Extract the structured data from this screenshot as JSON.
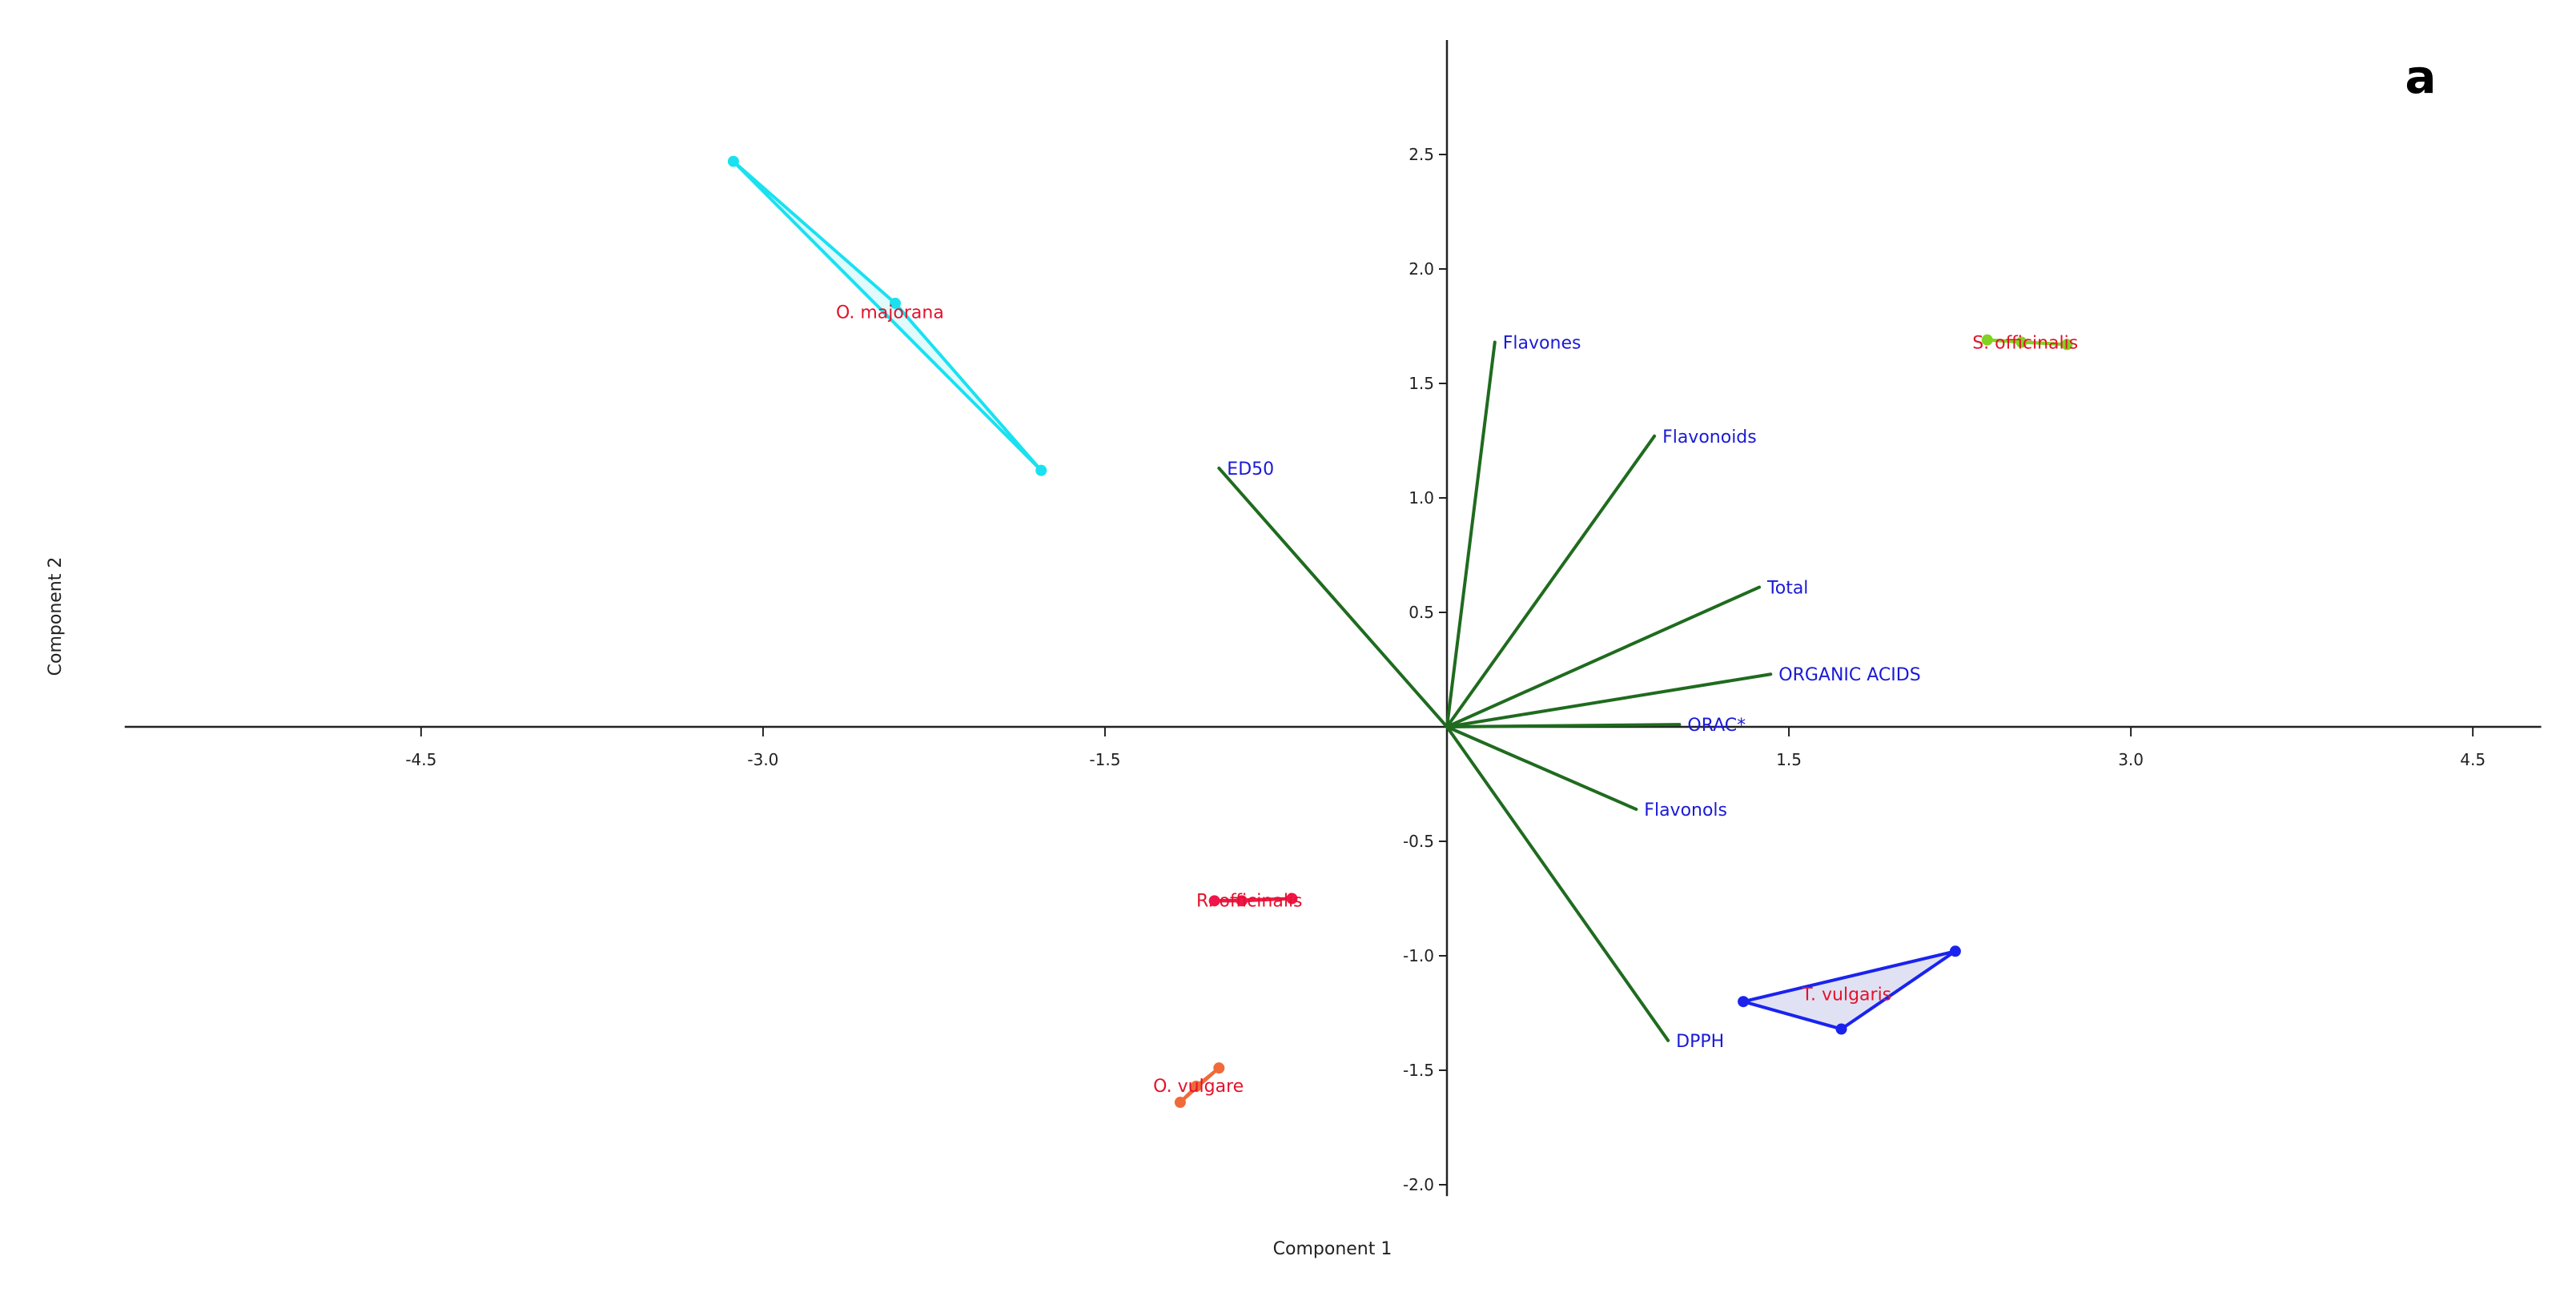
{
  "chart_data": {
    "type": "scatter",
    "subtype": "pca-biplot",
    "panel_label": "a",
    "xlabel": "Component 1",
    "ylabel": "Component 2",
    "xlim": [
      -5.8,
      4.8
    ],
    "ylim": [
      -2.05,
      3.0
    ],
    "x_ticks": [
      "-4.5",
      "-3.0",
      "-1.5",
      "1.5",
      "3.0",
      "4.5"
    ],
    "y_ticks": [
      "2.5",
      "2.0",
      "1.5",
      "1.0",
      "0.5",
      "-0.5",
      "-1.0",
      "-1.5",
      "-2.0"
    ],
    "loadings": [
      {
        "name": "Flavones",
        "x": 0.21,
        "y": 1.68
      },
      {
        "name": "Flavonoids",
        "x": 0.91,
        "y": 1.27
      },
      {
        "name": "ED50",
        "x": -1.0,
        "y": 1.13
      },
      {
        "name": "Total",
        "x": 1.37,
        "y": 0.61
      },
      {
        "name": "ORGANIC ACIDS",
        "x": 1.42,
        "y": 0.23
      },
      {
        "name": "ORAC*",
        "x": 1.02,
        "y": 0.01
      },
      {
        "name": "Flavonols",
        "x": 0.83,
        "y": -0.36
      },
      {
        "name": "DPPH",
        "x": 0.97,
        "y": -1.37
      }
    ],
    "groups": [
      {
        "name": "O. majorana",
        "color": "#19e1f0",
        "fill": "#c8f6fa",
        "points": [
          [
            -3.13,
            2.47
          ],
          [
            -2.42,
            1.85
          ],
          [
            -1.78,
            1.12
          ]
        ]
      },
      {
        "name": "S. officinalis",
        "color": "#7fd321",
        "fill": "#b7ec7d",
        "points": [
          [
            2.37,
            1.69
          ],
          [
            2.72,
            1.67
          ],
          [
            2.52,
            1.68
          ]
        ]
      },
      {
        "name": "R. officinalis",
        "color": "#f0164a",
        "fill": "#f69aae",
        "points": [
          [
            -1.02,
            -0.76
          ],
          [
            -0.68,
            -0.75
          ],
          [
            -0.9,
            -0.76
          ]
        ]
      },
      {
        "name": "O. vulgare",
        "color": "#f06a3a",
        "fill": "#f6ad90",
        "points": [
          [
            -1.17,
            -1.64
          ],
          [
            -1.0,
            -1.49
          ],
          [
            -1.1,
            -1.57
          ]
        ]
      },
      {
        "name": "T. vulgaris",
        "color": "#1a23ee",
        "fill": "#c6cbeb",
        "points": [
          [
            1.3,
            -1.2
          ],
          [
            2.23,
            -0.98
          ],
          [
            1.73,
            -1.32
          ]
        ]
      }
    ]
  }
}
